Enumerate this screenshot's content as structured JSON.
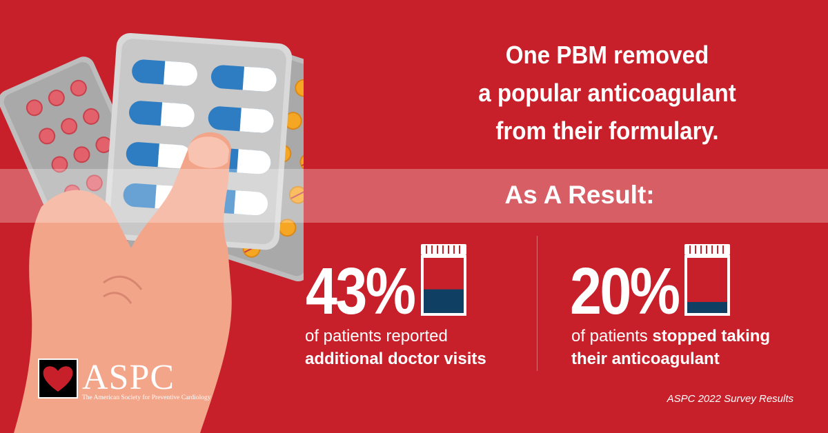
{
  "headline": {
    "line1": "One PBM removed",
    "line2": "a popular anticoagulant",
    "line3": "from their formulary."
  },
  "result_label": "As A Result:",
  "stats": [
    {
      "value": "43%",
      "line1": "of patients reported",
      "line2_bold": "additional doctor visits",
      "fill_fraction": 0.43
    },
    {
      "value": "20%",
      "line1_regular": "of patients ",
      "line1_bold": "stopped taking",
      "line2_bold": "their anticoagulant",
      "fill_fraction": 0.2
    }
  ],
  "logo": {
    "text": "ASPC",
    "subtitle": "The American Society for Preventive Cardiology"
  },
  "source": "ASPC 2022 Survey Results",
  "colors": {
    "background": "#c8202a",
    "jar_fill": "#0f3f63",
    "capsule_blue": "#2e7dc3",
    "hand": "#f3a58a",
    "tablet_orange": "#f5a623"
  },
  "icons": [
    "blister-pack-illustration",
    "hand-illustration",
    "pill-jar-icon",
    "heart-logo-icon"
  ]
}
